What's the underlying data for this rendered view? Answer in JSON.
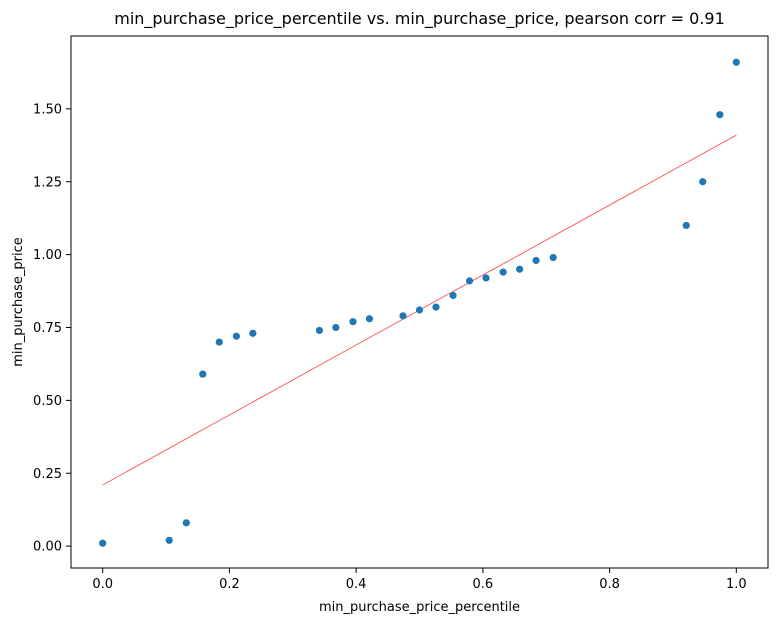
{
  "chart_data": {
    "type": "scatter",
    "title": "min_purchase_price_percentile vs. min_purchase_price, pearson corr = 0.91",
    "xlabel": "min_purchase_price_percentile",
    "ylabel": "min_purchase_price",
    "xlim": [
      -0.05,
      1.05
    ],
    "ylim": [
      -0.075,
      1.75
    ],
    "x_ticks": [
      0.0,
      0.2,
      0.4,
      0.6,
      0.8,
      1.0
    ],
    "x_tick_labels": [
      "0.0",
      "0.2",
      "0.4",
      "0.6",
      "0.8",
      "1.0"
    ],
    "y_ticks": [
      0.0,
      0.25,
      0.5,
      0.75,
      1.0,
      1.25,
      1.5
    ],
    "y_tick_labels": [
      "0.00",
      "0.25",
      "0.50",
      "0.75",
      "1.00",
      "1.25",
      "1.50"
    ],
    "grid": false,
    "point_color": "#1f77b4",
    "line_color": "#ff0000",
    "points": [
      {
        "x": 0.0,
        "y": 0.01
      },
      {
        "x": 0.105,
        "y": 0.02
      },
      {
        "x": 0.132,
        "y": 0.08
      },
      {
        "x": 0.158,
        "y": 0.59
      },
      {
        "x": 0.184,
        "y": 0.7
      },
      {
        "x": 0.211,
        "y": 0.72
      },
      {
        "x": 0.237,
        "y": 0.73
      },
      {
        "x": 0.342,
        "y": 0.74
      },
      {
        "x": 0.368,
        "y": 0.75
      },
      {
        "x": 0.395,
        "y": 0.77
      },
      {
        "x": 0.421,
        "y": 0.78
      },
      {
        "x": 0.474,
        "y": 0.79
      },
      {
        "x": 0.5,
        "y": 0.81
      },
      {
        "x": 0.526,
        "y": 0.82
      },
      {
        "x": 0.553,
        "y": 0.86
      },
      {
        "x": 0.579,
        "y": 0.91
      },
      {
        "x": 0.605,
        "y": 0.92
      },
      {
        "x": 0.632,
        "y": 0.94
      },
      {
        "x": 0.658,
        "y": 0.95
      },
      {
        "x": 0.684,
        "y": 0.98
      },
      {
        "x": 0.711,
        "y": 0.99
      },
      {
        "x": 0.921,
        "y": 1.1
      },
      {
        "x": 0.947,
        "y": 1.25
      },
      {
        "x": 0.974,
        "y": 1.48
      },
      {
        "x": 1.0,
        "y": 1.66
      }
    ],
    "fit_line": {
      "x": [
        0.0,
        1.0
      ],
      "y": [
        0.21,
        1.41
      ]
    }
  }
}
